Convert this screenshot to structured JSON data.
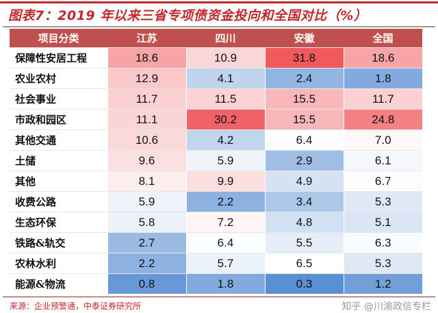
{
  "title": "图表7：2019 年以来三省专项债资金投向和全国对比（%）",
  "source": "来源：企业预警通，中泰证券研究所",
  "watermark": "知乎 @川渝政信专栏",
  "chart_data": {
    "type": "heatmap",
    "title": "图表7：2019 年以来三省专项债资金投向和全国对比（%）",
    "columns": [
      "项目分类",
      "江苏",
      "四川",
      "安徽",
      "全国"
    ],
    "rows": [
      {
        "label": "保障性安居工程",
        "values": [
          18.6,
          10.9,
          31.8,
          18.6
        ]
      },
      {
        "label": "农业农村",
        "values": [
          12.9,
          4.1,
          2.4,
          1.8
        ]
      },
      {
        "label": "社会事业",
        "values": [
          11.7,
          11.5,
          15.5,
          11.7
        ]
      },
      {
        "label": "市政和园区",
        "values": [
          11.1,
          30.2,
          15.5,
          24.8
        ]
      },
      {
        "label": "其他交通",
        "values": [
          10.6,
          4.2,
          6.4,
          7.0
        ]
      },
      {
        "label": "土储",
        "values": [
          9.6,
          5.9,
          2.9,
          6.1
        ]
      },
      {
        "label": "其他",
        "values": [
          8.1,
          9.9,
          4.9,
          6.7
        ]
      },
      {
        "label": "收费公路",
        "values": [
          5.9,
          2.2,
          3.4,
          5.3
        ]
      },
      {
        "label": "生态环保",
        "values": [
          5.8,
          7.2,
          4.8,
          5.1
        ]
      },
      {
        "label": "铁路&轨交",
        "values": [
          2.7,
          6.4,
          5.5,
          6.3
        ]
      },
      {
        "label": "农林水利",
        "values": [
          2.2,
          5.7,
          6.5,
          5.3
        ]
      },
      {
        "label": "能源&物流",
        "values": [
          0.8,
          1.8,
          0.3,
          1.2
        ]
      }
    ],
    "color_scale": {
      "low": "#5b8fd3",
      "mid": "#ffffff",
      "high": "#f05a5e"
    }
  }
}
